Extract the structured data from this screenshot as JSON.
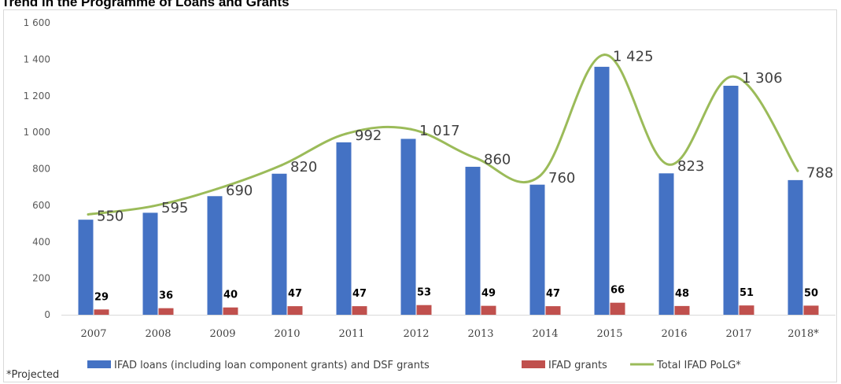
{
  "chart_data": {
    "type": "bar",
    "title": "Trend in the Programme of Loans and Grants",
    "categories": [
      "2007",
      "2008",
      "2009",
      "2010",
      "2011",
      "2012",
      "2013",
      "2014",
      "2015",
      "2016",
      "2017",
      "2018*"
    ],
    "ylim": [
      0,
      1600
    ],
    "yticks": [
      0,
      200,
      400,
      600,
      800,
      1000,
      1200,
      1400,
      1600
    ],
    "ytick_labels": [
      "0",
      "200",
      "400",
      "600",
      "800",
      "1 000",
      "1 200",
      "1 400",
      "1 600"
    ],
    "grid": false,
    "legend_position": "bottom",
    "series": [
      {
        "name": "IFAD loans (including loan component grants) and DSF grants",
        "kind": "bar",
        "color": "#4472c4",
        "values": [
          521,
          559,
          650,
          773,
          945,
          964,
          811,
          713,
          1359,
          775,
          1255,
          738
        ]
      },
      {
        "name": "IFAD grants",
        "kind": "bar",
        "color": "#c0504d",
        "values": [
          29,
          36,
          40,
          47,
          47,
          53,
          49,
          47,
          66,
          48,
          51,
          50
        ],
        "labels": [
          "29",
          "36",
          "40",
          "47",
          "47",
          "53",
          "49",
          "47",
          "66",
          "48",
          "51",
          "50"
        ]
      },
      {
        "name": "Total IFAD PoLG*",
        "kind": "line",
        "color": "#9bbb59",
        "values": [
          550,
          595,
          690,
          820,
          992,
          1017,
          860,
          760,
          1425,
          823,
          1306,
          788
        ],
        "labels": [
          "550",
          "595",
          "690",
          "820",
          "992",
          "1 017",
          "860",
          "760",
          "1 425",
          "823",
          "1 306",
          "788"
        ]
      }
    ]
  },
  "footnote": "*Projected"
}
